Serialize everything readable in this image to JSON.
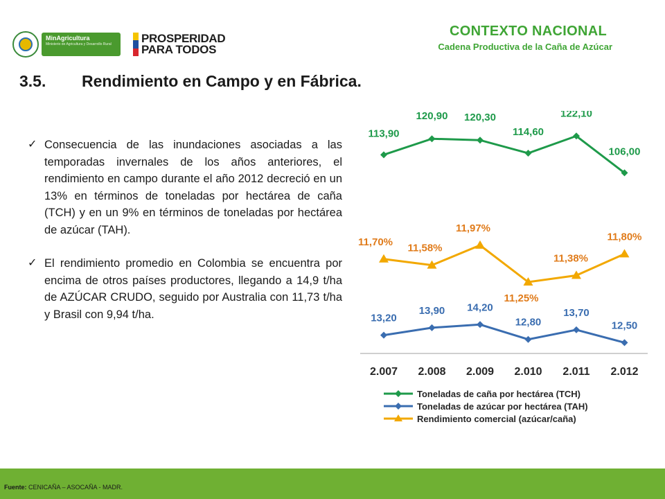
{
  "header": {
    "logo_minagri_title": "MinAgricultura",
    "logo_minagri_sub": "Ministerio de Agricultura y Desarrollo Rural",
    "logo_pp_line1": "PROSPERIDAD",
    "logo_pp_line2": "PARA TODOS",
    "context_title": "CONTEXTO NACIONAL",
    "context_subtitle": "Cadena Productiva de la Caña de Azúcar"
  },
  "section": {
    "number": "3.5.",
    "title": "Rendimiento en Campo y en Fábrica."
  },
  "bullets": [
    {
      "text": "Consecuencia de las inundaciones asociadas a las temporadas invernales de los años anteriores, el rendimiento en campo durante el año 2012 decreció en un 13% en términos de toneladas por hectárea de caña (TCH) y en un 9% en términos de toneladas por hectárea de azúcar (TAH)."
    },
    {
      "text": "El rendimiento promedio en Colombia se encuentra por encima de otros países productores, llegando a 14,9 t/ha de AZÚCAR CRUDO, seguido por Australia con 11,73 t/ha y Brasil con 9,94 t/ha."
    }
  ],
  "footer": {
    "source_label": "Fuente:",
    "source_text": "CENICAÑA – ASOCAÑA - MADR."
  },
  "chart_data": {
    "type": "line",
    "categories": [
      "2.007",
      "2.008",
      "2.009",
      "2.010",
      "2.011",
      "2.012"
    ],
    "series": [
      {
        "name": "Toneladas de caña por hectárea (TCH)",
        "color": "#1e9a4a",
        "marker": "diamond",
        "values": [
          113.9,
          120.9,
          120.3,
          114.6,
          122.1,
          106.0
        ],
        "labels": [
          "113,90",
          "120,90",
          "120,30",
          "114,60",
          "122,10",
          "106,00"
        ]
      },
      {
        "name": "Toneladas de azúcar por hectárea (TAH)",
        "color": "#3a6db0",
        "marker": "diamond",
        "values": [
          13.2,
          13.9,
          14.2,
          12.8,
          13.7,
          12.5
        ],
        "labels": [
          "13,20",
          "13,90",
          "14,20",
          "12,80",
          "13,70",
          "12,50"
        ]
      },
      {
        "name": "Rendimiento comercial (azúcar/caña)",
        "color": "#f2a800",
        "marker": "triangle",
        "values": [
          11.7,
          11.58,
          11.97,
          11.25,
          11.38,
          11.8
        ],
        "labels": [
          "11,70%",
          "11,58%",
          "11,97%",
          "11,25%",
          "11,38%",
          "11,80%"
        ]
      }
    ],
    "label_colors": {
      "tch": "#1e9a4a",
      "tah": "#3a6db0",
      "rc": "#e07b1a"
    },
    "legend_position": "bottom",
    "grid": false
  }
}
